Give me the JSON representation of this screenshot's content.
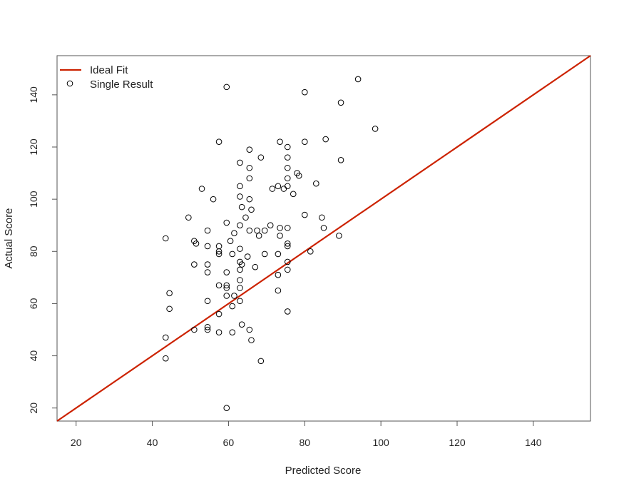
{
  "chart_data": {
    "type": "scatter",
    "title": "",
    "xlabel": "Predicted Score",
    "ylabel": "Actual Score",
    "xlim": [
      15,
      155
    ],
    "ylim": [
      15,
      155
    ],
    "xticks": [
      20,
      40,
      60,
      80,
      100,
      120,
      140
    ],
    "yticks": [
      20,
      40,
      60,
      80,
      100,
      120,
      140
    ],
    "grid": false,
    "legend_position": "top-left",
    "reference_line": {
      "name": "Ideal Fit",
      "color": "#cc2200",
      "x": [
        15,
        155
      ],
      "y": [
        15,
        155
      ]
    },
    "series": [
      {
        "name": "Single Result",
        "marker": "open-circle",
        "color": "#000000",
        "points": [
          [
            43.5,
            85
          ],
          [
            43.5,
            47
          ],
          [
            43.5,
            39
          ],
          [
            44.5,
            64
          ],
          [
            44.5,
            58
          ],
          [
            49.5,
            93
          ],
          [
            51,
            84
          ],
          [
            51.5,
            83
          ],
          [
            51,
            75
          ],
          [
            51,
            50
          ],
          [
            53,
            104
          ],
          [
            54.5,
            88
          ],
          [
            54.5,
            82
          ],
          [
            54.5,
            75
          ],
          [
            54.5,
            72
          ],
          [
            54.5,
            61
          ],
          [
            54.5,
            51
          ],
          [
            54.5,
            50
          ],
          [
            56,
            100
          ],
          [
            57.5,
            122
          ],
          [
            57.5,
            82
          ],
          [
            57.5,
            80
          ],
          [
            57.5,
            79
          ],
          [
            57.5,
            67
          ],
          [
            57.5,
            56
          ],
          [
            57.5,
            49
          ],
          [
            59.5,
            143
          ],
          [
            59.5,
            91
          ],
          [
            59.5,
            72
          ],
          [
            59.5,
            67
          ],
          [
            59.5,
            66
          ],
          [
            59.5,
            63
          ],
          [
            59.5,
            20
          ],
          [
            60.5,
            84
          ],
          [
            61,
            79
          ],
          [
            61,
            59
          ],
          [
            61,
            49
          ],
          [
            61.5,
            87
          ],
          [
            61.5,
            63
          ],
          [
            63,
            114
          ],
          [
            63,
            105
          ],
          [
            63,
            101
          ],
          [
            63,
            90
          ],
          [
            63,
            81
          ],
          [
            63,
            76
          ],
          [
            63,
            73
          ],
          [
            63,
            69
          ],
          [
            63,
            66
          ],
          [
            63,
            61
          ],
          [
            63.5,
            97
          ],
          [
            63.5,
            75
          ],
          [
            63.5,
            52
          ],
          [
            64.5,
            93
          ],
          [
            65,
            78
          ],
          [
            65.5,
            119
          ],
          [
            65.5,
            112
          ],
          [
            65.5,
            108
          ],
          [
            65.5,
            100
          ],
          [
            65.5,
            88
          ],
          [
            65.5,
            50
          ],
          [
            66,
            96
          ],
          [
            66,
            46
          ],
          [
            67,
            74
          ],
          [
            67.5,
            88
          ],
          [
            68,
            86
          ],
          [
            68.5,
            116
          ],
          [
            68.5,
            38
          ],
          [
            69.5,
            88
          ],
          [
            69.5,
            79
          ],
          [
            71,
            90
          ],
          [
            71.5,
            104
          ],
          [
            73,
            105
          ],
          [
            73,
            79
          ],
          [
            73,
            71
          ],
          [
            73,
            65
          ],
          [
            73.5,
            122
          ],
          [
            73.5,
            89
          ],
          [
            73.5,
            86
          ],
          [
            74.5,
            104
          ],
          [
            75.5,
            120
          ],
          [
            75.5,
            116
          ],
          [
            75.5,
            112
          ],
          [
            75.5,
            108
          ],
          [
            75.5,
            105
          ],
          [
            75.5,
            89
          ],
          [
            75.5,
            83
          ],
          [
            75.5,
            82
          ],
          [
            75.5,
            76
          ],
          [
            75.5,
            73
          ],
          [
            75.5,
            57
          ],
          [
            77,
            102
          ],
          [
            78,
            110
          ],
          [
            78.5,
            109
          ],
          [
            80,
            122
          ],
          [
            80,
            94
          ],
          [
            80,
            141
          ],
          [
            81.5,
            80
          ],
          [
            83,
            106
          ],
          [
            84.5,
            93
          ],
          [
            85,
            89
          ],
          [
            85.5,
            123
          ],
          [
            89,
            86
          ],
          [
            89.5,
            137
          ],
          [
            89.5,
            115
          ],
          [
            94,
            146
          ],
          [
            98.5,
            127
          ]
        ]
      }
    ]
  }
}
